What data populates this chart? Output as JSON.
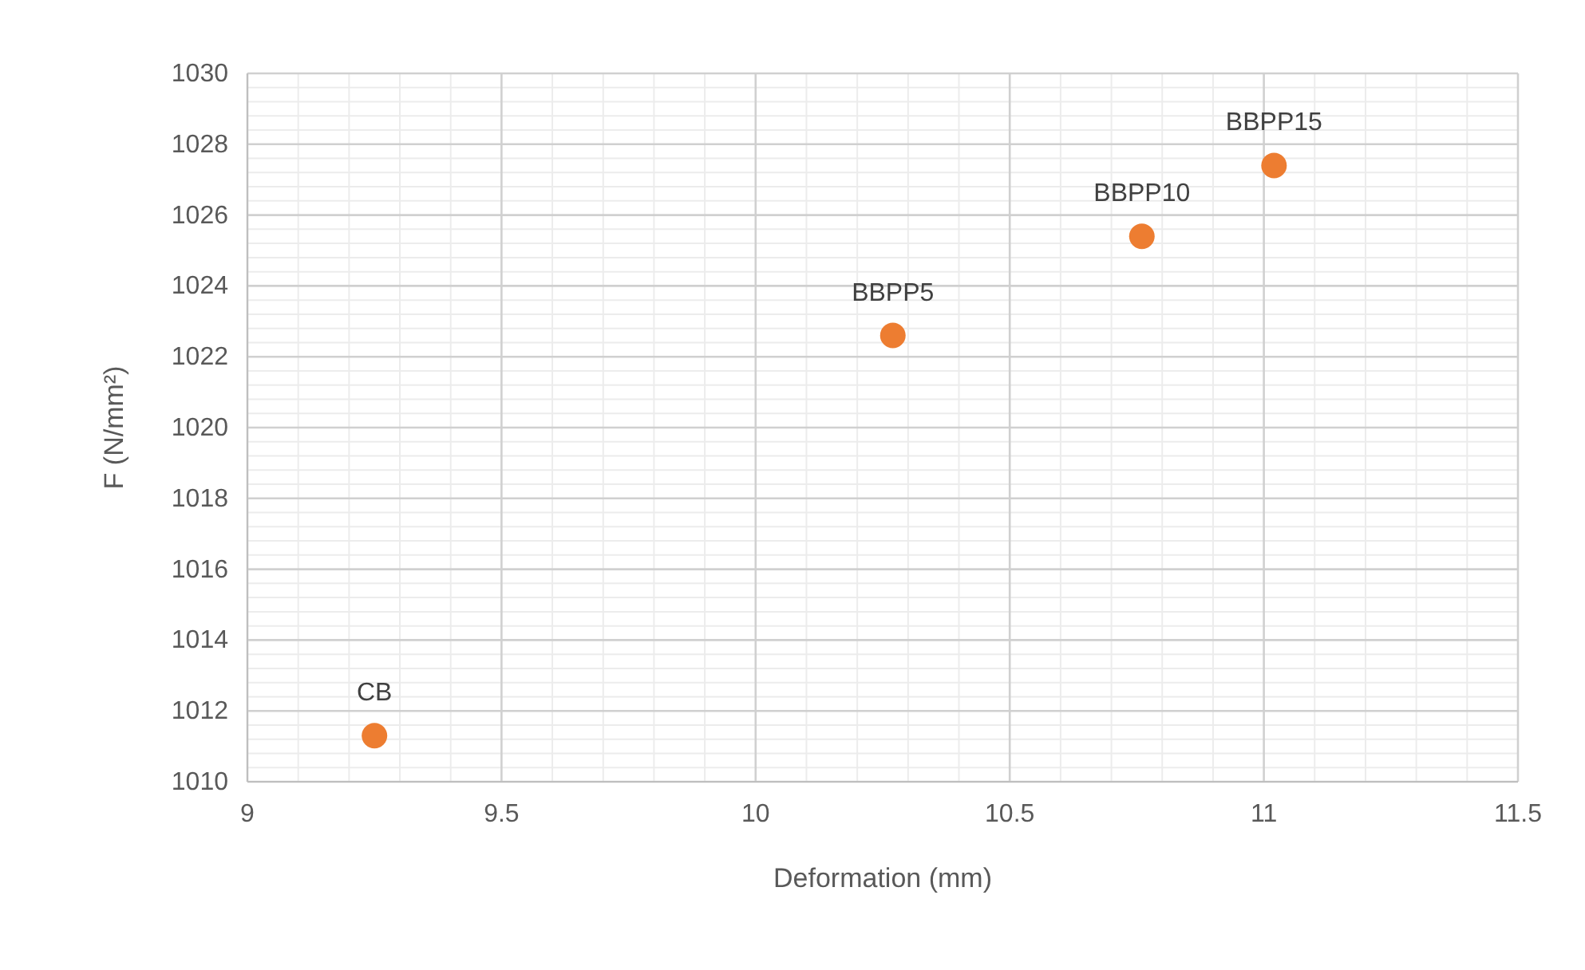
{
  "chart_data": {
    "type": "scatter",
    "xlabel": "Deformation (mm)",
    "ylabel": "F (N/mm²)",
    "x": [
      9.25,
      10.27,
      10.76,
      11.02
    ],
    "values": [
      1011.3,
      1022.6,
      1025.4,
      1027.4
    ],
    "color": "#ed7d31",
    "marker": "circle",
    "xlim": [
      9,
      11.5
    ],
    "xticks": [
      9,
      9.5,
      10,
      10.5,
      11,
      11.5
    ],
    "ylim": [
      1010,
      1030
    ],
    "yticks": [
      1010,
      1012,
      1014,
      1016,
      1018,
      1020,
      1022,
      1024,
      1026,
      1028,
      1030
    ],
    "grid": true,
    "annotations": [
      {
        "text": "CB",
        "x": 9.25,
        "y": 1011.3
      },
      {
        "text": "BBPP5",
        "x": 10.27,
        "y": 1022.6
      },
      {
        "text": "BBPP10",
        "x": 10.76,
        "y": 1025.4
      },
      {
        "text": "BBPP15",
        "x": 11.02,
        "y": 1027.4
      }
    ]
  }
}
